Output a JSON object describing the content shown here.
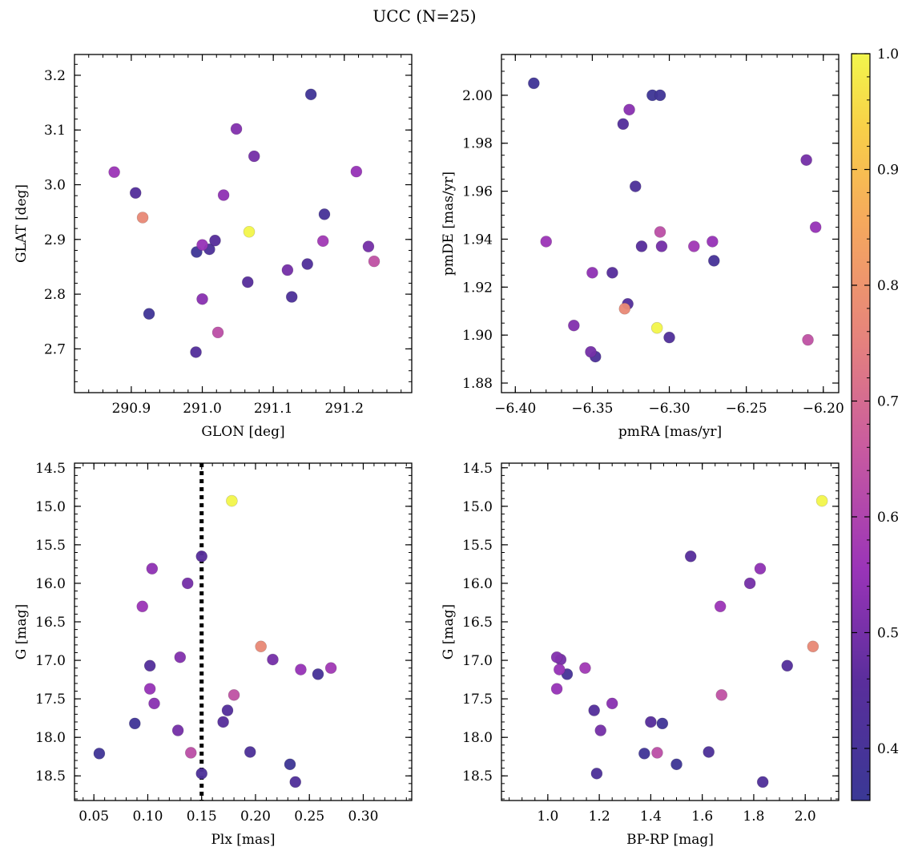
{
  "chart_data": {
    "title": "UCC (N=25)",
    "type": "scatter",
    "colorbar": {
      "min": 0.355,
      "max": 1.0,
      "ticks": [
        0.4,
        0.5,
        0.6,
        0.7,
        0.8,
        0.9,
        1.0
      ],
      "tick_labels": [
        "0.4",
        "0.5",
        "0.6",
        "0.7",
        "0.8",
        "0.9",
        "1.0"
      ],
      "colormap": "plasma"
    },
    "stars": [
      {
        "glon": 290.876,
        "glat": 3.023,
        "pmra": -6.38,
        "pmde": 1.939,
        "plx": 0.095,
        "g": 16.3,
        "bprp": 1.67,
        "p": 0.56
      },
      {
        "glon": 290.906,
        "glat": 2.985,
        "pmra": -6.327,
        "pmde": 1.913,
        "plx": 0.102,
        "g": 17.07,
        "bprp": 1.93,
        "p": 0.44
      },
      {
        "glon": 290.916,
        "glat": 2.94,
        "pmra": -6.329,
        "pmde": 1.911,
        "plx": 0.205,
        "g": 16.82,
        "bprp": 2.03,
        "p": 0.77
      },
      {
        "glon": 290.925,
        "glat": 2.764,
        "pmra": -6.388,
        "pmde": 2.005,
        "plx": 0.055,
        "g": 18.21,
        "bprp": 1.375,
        "p": 0.38
      },
      {
        "glon": 290.991,
        "glat": 2.694,
        "pmra": -6.33,
        "pmde": 1.988,
        "plx": 0.174,
        "g": 17.65,
        "bprp": 1.18,
        "p": 0.44
      },
      {
        "glon": 290.992,
        "glat": 2.877,
        "pmra": -6.311,
        "pmde": 2.0,
        "plx": 0.232,
        "g": 18.35,
        "bprp": 1.5,
        "p": 0.37
      },
      {
        "glon": 291.0,
        "glat": 2.791,
        "pmra": -6.326,
        "pmde": 1.994,
        "plx": 0.106,
        "g": 17.56,
        "bprp": 1.25,
        "p": 0.53
      },
      {
        "glon": 291.0,
        "glat": 2.89,
        "pmra": -6.272,
        "pmde": 1.939,
        "plx": 0.102,
        "g": 17.37,
        "bprp": 1.035,
        "p": 0.55
      },
      {
        "glon": 291.01,
        "glat": 2.882,
        "pmra": -6.322,
        "pmde": 1.962,
        "plx": 0.195,
        "g": 18.19,
        "bprp": 1.625,
        "p": 0.42
      },
      {
        "glon": 291.018,
        "glat": 2.898,
        "pmra": -6.318,
        "pmde": 1.937,
        "plx": 0.15,
        "g": 15.65,
        "bprp": 1.555,
        "p": 0.45
      },
      {
        "glon": 291.022,
        "glat": 2.73,
        "pmra": -6.306,
        "pmde": 1.943,
        "plx": 0.14,
        "g": 18.2,
        "bprp": 1.425,
        "p": 0.63
      },
      {
        "glon": 291.03,
        "glat": 2.981,
        "pmra": -6.35,
        "pmde": 1.926,
        "plx": 0.104,
        "g": 15.81,
        "bprp": 1.825,
        "p": 0.54
      },
      {
        "glon": 291.048,
        "glat": 3.102,
        "pmra": -6.362,
        "pmde": 1.904,
        "plx": 0.13,
        "g": 16.96,
        "bprp": 1.035,
        "p": 0.52
      },
      {
        "glon": 291.064,
        "glat": 2.822,
        "pmra": -6.337,
        "pmde": 1.926,
        "plx": 0.17,
        "g": 17.8,
        "bprp": 1.4,
        "p": 0.45
      },
      {
        "glon": 291.066,
        "glat": 2.914,
        "pmra": -6.308,
        "pmde": 1.903,
        "plx": 0.178,
        "g": 14.93,
        "bprp": 2.065,
        "p": 1.0
      },
      {
        "glon": 291.073,
        "glat": 3.052,
        "pmra": -6.351,
        "pmde": 1.893,
        "plx": 0.137,
        "g": 16.0,
        "bprp": 1.785,
        "p": 0.5
      },
      {
        "glon": 291.12,
        "glat": 2.844,
        "pmra": -6.305,
        "pmde": 1.937,
        "plx": 0.216,
        "g": 16.99,
        "bprp": 1.05,
        "p": 0.5
      },
      {
        "glon": 291.126,
        "glat": 2.795,
        "pmra": -6.348,
        "pmde": 1.891,
        "plx": 0.15,
        "g": 18.47,
        "bprp": 1.19,
        "p": 0.42
      },
      {
        "glon": 291.148,
        "glat": 2.855,
        "pmra": -6.3,
        "pmde": 1.899,
        "plx": 0.237,
        "g": 18.58,
        "bprp": 1.835,
        "p": 0.43
      },
      {
        "glon": 291.153,
        "glat": 3.165,
        "pmra": -6.306,
        "pmde": 2.0,
        "plx": 0.088,
        "g": 17.82,
        "bprp": 1.445,
        "p": 0.38
      },
      {
        "glon": 291.17,
        "glat": 2.897,
        "pmra": -6.284,
        "pmde": 1.937,
        "plx": 0.27,
        "g": 17.1,
        "bprp": 1.145,
        "p": 0.57
      },
      {
        "glon": 291.172,
        "glat": 2.946,
        "pmra": -6.271,
        "pmde": 1.931,
        "plx": 0.258,
        "g": 17.18,
        "bprp": 1.075,
        "p": 0.4
      },
      {
        "glon": 291.217,
        "glat": 3.024,
        "pmra": -6.205,
        "pmde": 1.945,
        "plx": 0.242,
        "g": 17.12,
        "bprp": 1.045,
        "p": 0.55
      },
      {
        "glon": 291.234,
        "glat": 2.887,
        "pmra": -6.211,
        "pmde": 1.973,
        "plx": 0.128,
        "g": 17.91,
        "bprp": 1.205,
        "p": 0.5
      },
      {
        "glon": 291.242,
        "glat": 2.86,
        "pmra": -6.21,
        "pmde": 1.898,
        "plx": 0.18,
        "g": 17.45,
        "bprp": 1.675,
        "p": 0.64
      }
    ],
    "panels": [
      {
        "id": "glon-glat",
        "xkey": "glon",
        "ykey": "glat",
        "xlabel": "GLON [deg]",
        "ylabel": "GLAT [deg]",
        "xlim": [
          290.82,
          291.295
        ],
        "ylim": [
          2.62,
          3.238
        ],
        "xinvert": false,
        "yinvert": false,
        "xticks": [
          290.9,
          291.0,
          291.1,
          291.2
        ],
        "xtick_labels": [
          "290.9",
          "291.0",
          "291.1",
          "291.2"
        ],
        "yticks": [
          2.7,
          2.8,
          2.9,
          3.0,
          3.1,
          3.2
        ],
        "ytick_labels": [
          "2.7",
          "2.8",
          "2.9",
          "3.0",
          "3.1",
          "3.2"
        ],
        "xminor_step": 0.02,
        "yminor_step": 0.02
      },
      {
        "id": "pmra-pmde",
        "xkey": "pmra",
        "ykey": "pmde",
        "xlabel": "pmRA [mas/yr]",
        "ylabel": "pmDE [mas/yr]",
        "xlim": [
          -6.409,
          -6.19
        ],
        "ylim": [
          1.876,
          2.017
        ],
        "xinvert": false,
        "yinvert": false,
        "xticks": [
          -6.4,
          -6.35,
          -6.3,
          -6.25,
          -6.2
        ],
        "xtick_labels": [
          "−6.40",
          "−6.35",
          "−6.30",
          "−6.25",
          "−6.20"
        ],
        "yticks": [
          1.88,
          1.9,
          1.92,
          1.94,
          1.96,
          1.98,
          2.0
        ],
        "ytick_labels": [
          "1.88",
          "1.90",
          "1.92",
          "1.94",
          "1.96",
          "1.98",
          "2.00"
        ],
        "xminor_step": 0.01,
        "yminor_step": 0.005
      },
      {
        "id": "plx-g",
        "xkey": "plx",
        "ykey": "g",
        "xlabel": "Plx [mas]",
        "ylabel": "G [mag]",
        "xlim": [
          0.032,
          0.345
        ],
        "ylim": [
          14.44,
          18.82
        ],
        "xinvert": false,
        "yinvert": true,
        "xticks": [
          0.05,
          0.1,
          0.15,
          0.2,
          0.25,
          0.3
        ],
        "xtick_labels": [
          "0.05",
          "0.10",
          "0.15",
          "0.20",
          "0.25",
          "0.30"
        ],
        "yticks": [
          14.5,
          15.0,
          15.5,
          16.0,
          16.5,
          17.0,
          17.5,
          18.0,
          18.5
        ],
        "ytick_labels": [
          "14.5",
          "15.0",
          "15.5",
          "16.0",
          "16.5",
          "17.0",
          "17.5",
          "18.0",
          "18.5"
        ],
        "xminor_step": 0.01,
        "yminor_step": 0.1,
        "vline": 0.15
      },
      {
        "id": "bprp-g",
        "xkey": "bprp",
        "ykey": "g",
        "xlabel": "BP-RP [mag]",
        "ylabel": "G [mag]",
        "xlim": [
          0.82,
          2.13
        ],
        "ylim": [
          14.44,
          18.82
        ],
        "xinvert": false,
        "yinvert": true,
        "xticks": [
          1.0,
          1.2,
          1.4,
          1.6,
          1.8,
          2.0
        ],
        "xtick_labels": [
          "1.0",
          "1.2",
          "1.4",
          "1.6",
          "1.8",
          "2.0"
        ],
        "yticks": [
          14.5,
          15.0,
          15.5,
          16.0,
          16.5,
          17.0,
          17.5,
          18.0,
          18.5
        ],
        "ytick_labels": [
          "14.5",
          "15.0",
          "15.5",
          "16.0",
          "16.5",
          "17.0",
          "17.5",
          "18.0",
          "18.5"
        ],
        "xminor_step": 0.05,
        "yminor_step": 0.1
      }
    ]
  }
}
